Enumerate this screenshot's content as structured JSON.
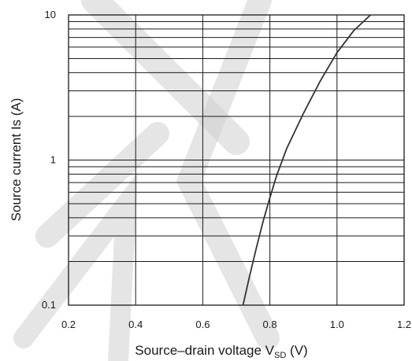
{
  "chart_data": {
    "type": "line",
    "xlabel": "Source–drain voltage V",
    "xlabel_subscript": "SD",
    "xlabel_suffix": " (V)",
    "ylabel": "Source current Is (A)",
    "x_ticks": [
      "0.2",
      "0.4",
      "0.6",
      "0.8",
      "1.0",
      "1.2"
    ],
    "y_ticks": [
      "0.1",
      "1",
      "10"
    ],
    "xlim": [
      0.2,
      1.2
    ],
    "ylim": [
      0.1,
      10
    ],
    "y_scale": "log",
    "grid": true,
    "series": [
      {
        "x": [
          0.72,
          0.74,
          0.76,
          0.78,
          0.8,
          0.82,
          0.85,
          0.9,
          0.95,
          1.0,
          1.05,
          1.1
        ],
        "y": [
          0.1,
          0.16,
          0.25,
          0.38,
          0.55,
          0.78,
          1.2,
          2.1,
          3.5,
          5.5,
          7.8,
          10
        ]
      }
    ]
  }
}
